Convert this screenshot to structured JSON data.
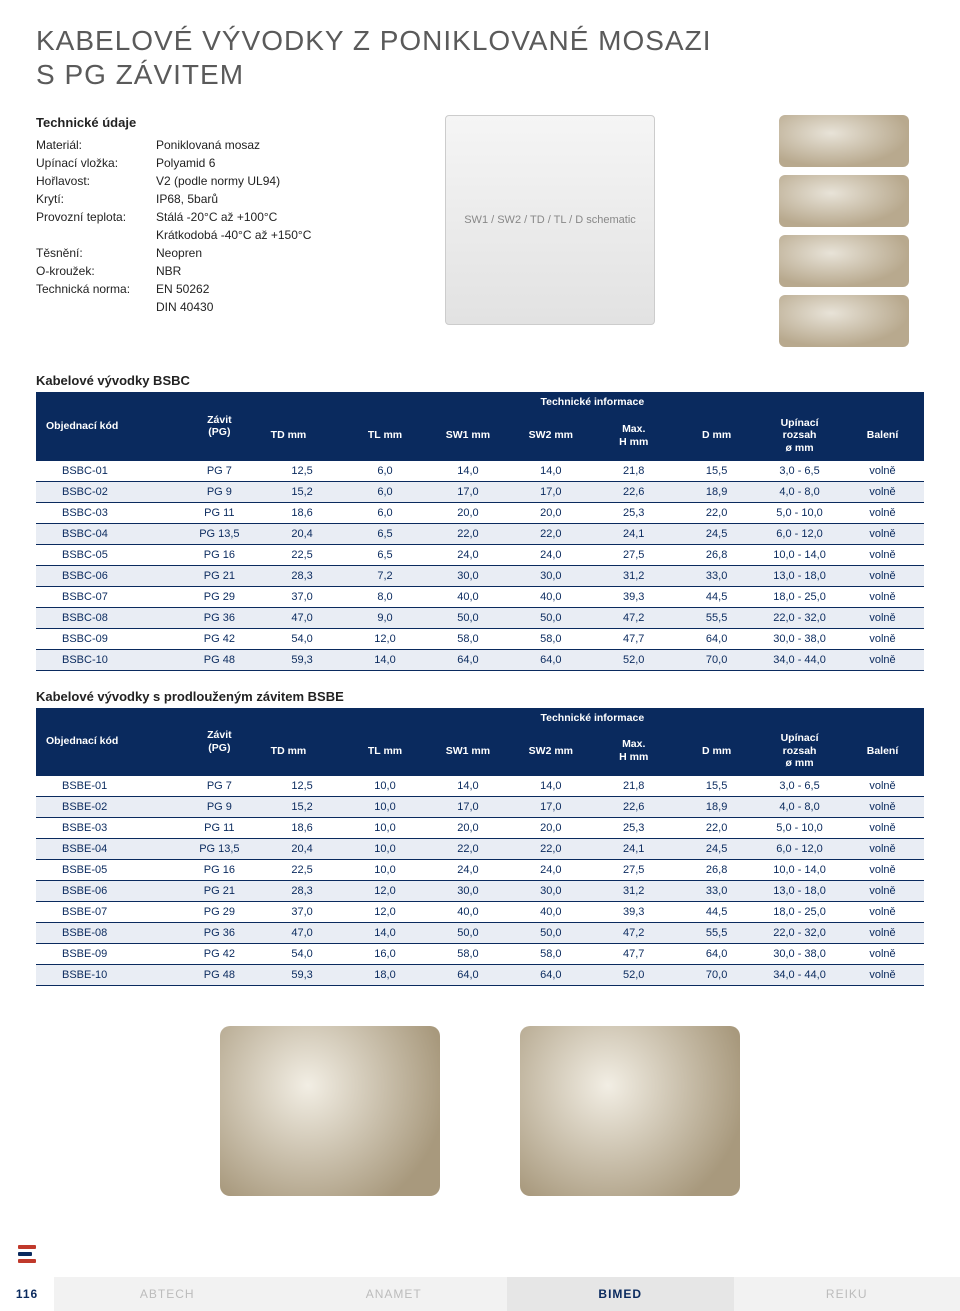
{
  "title_line1": "KABELOVÉ VÝVODKY Z PONIKLOVANÉ MOSAZI",
  "title_line2": "S PG ZÁVITEM",
  "specs": {
    "heading": "Technické údaje",
    "rows": [
      {
        "label": "Materiál:",
        "value": "Poniklovaná mosaz"
      },
      {
        "label": "Upínací vložka:",
        "value": "Polyamid 6"
      },
      {
        "label": "Hořlavost:",
        "value": "V2 (podle normy UL94)"
      },
      {
        "label": "Krytí:",
        "value": "IP68, 5barů"
      },
      {
        "label": "Provozní teplota:",
        "value": "Stálá -20°C až +100°C"
      },
      {
        "label": "",
        "value": "Krátkodobá -40°C až +150°C"
      },
      {
        "label": "Těsnění:",
        "value": "Neopren"
      },
      {
        "label": "O-kroužek:",
        "value": "NBR"
      },
      {
        "label": "Technická norma:",
        "value": "EN 50262"
      },
      {
        "label": "",
        "value": "DIN 40430"
      }
    ]
  },
  "diagram_caption": "SW1 / SW2 / TD / TL / D schematic",
  "table_meta": {
    "supheader": "Technické informace",
    "columns": [
      "Objednací kód",
      "Závit\n(PG)",
      "TD mm",
      "TL mm",
      "SW1 mm",
      "SW2 mm",
      "Max.\nH mm",
      "D mm",
      "Upínací\nrozsah\nø mm",
      "Balení"
    ]
  },
  "table1": {
    "title": "Kabelové vývodky BSBC",
    "rows": [
      [
        "BSBC-01",
        "PG 7",
        "12,5",
        "6,0",
        "14,0",
        "14,0",
        "21,8",
        "15,5",
        "3,0 - 6,5",
        "volně"
      ],
      [
        "BSBC-02",
        "PG 9",
        "15,2",
        "6,0",
        "17,0",
        "17,0",
        "22,6",
        "18,9",
        "4,0 - 8,0",
        "volně"
      ],
      [
        "BSBC-03",
        "PG 11",
        "18,6",
        "6,0",
        "20,0",
        "20,0",
        "25,3",
        "22,0",
        "5,0 - 10,0",
        "volně"
      ],
      [
        "BSBC-04",
        "PG 13,5",
        "20,4",
        "6,5",
        "22,0",
        "22,0",
        "24,1",
        "24,5",
        "6,0 - 12,0",
        "volně"
      ],
      [
        "BSBC-05",
        "PG 16",
        "22,5",
        "6,5",
        "24,0",
        "24,0",
        "27,5",
        "26,8",
        "10,0 - 14,0",
        "volně"
      ],
      [
        "BSBC-06",
        "PG 21",
        "28,3",
        "7,2",
        "30,0",
        "30,0",
        "31,2",
        "33,0",
        "13,0 - 18,0",
        "volně"
      ],
      [
        "BSBC-07",
        "PG 29",
        "37,0",
        "8,0",
        "40,0",
        "40,0",
        "39,3",
        "44,5",
        "18,0 - 25,0",
        "volně"
      ],
      [
        "BSBC-08",
        "PG 36",
        "47,0",
        "9,0",
        "50,0",
        "50,0",
        "47,2",
        "55,5",
        "22,0 - 32,0",
        "volně"
      ],
      [
        "BSBC-09",
        "PG 42",
        "54,0",
        "12,0",
        "58,0",
        "58,0",
        "47,7",
        "64,0",
        "30,0 - 38,0",
        "volně"
      ],
      [
        "BSBC-10",
        "PG 48",
        "59,3",
        "14,0",
        "64,0",
        "64,0",
        "52,0",
        "70,0",
        "34,0 - 44,0",
        "volně"
      ]
    ]
  },
  "table2": {
    "title": "Kabelové vývodky s prodlouženým závitem BSBE",
    "rows": [
      [
        "BSBE-01",
        "PG 7",
        "12,5",
        "10,0",
        "14,0",
        "14,0",
        "21,8",
        "15,5",
        "3,0 - 6,5",
        "volně"
      ],
      [
        "BSBE-02",
        "PG 9",
        "15,2",
        "10,0",
        "17,0",
        "17,0",
        "22,6",
        "18,9",
        "4,0 - 8,0",
        "volně"
      ],
      [
        "BSBE-03",
        "PG 11",
        "18,6",
        "10,0",
        "20,0",
        "20,0",
        "25,3",
        "22,0",
        "5,0 - 10,0",
        "volně"
      ],
      [
        "BSBE-04",
        "PG 13,5",
        "20,4",
        "10,0",
        "22,0",
        "22,0",
        "24,1",
        "24,5",
        "6,0 - 12,0",
        "volně"
      ],
      [
        "BSBE-05",
        "PG 16",
        "22,5",
        "10,0",
        "24,0",
        "24,0",
        "27,5",
        "26,8",
        "10,0 - 14,0",
        "volně"
      ],
      [
        "BSBE-06",
        "PG 21",
        "28,3",
        "12,0",
        "30,0",
        "30,0",
        "31,2",
        "33,0",
        "13,0 - 18,0",
        "volně"
      ],
      [
        "BSBE-07",
        "PG 29",
        "37,0",
        "12,0",
        "40,0",
        "40,0",
        "39,3",
        "44,5",
        "18,0 - 25,0",
        "volně"
      ],
      [
        "BSBE-08",
        "PG 36",
        "47,0",
        "14,0",
        "50,0",
        "50,0",
        "47,2",
        "55,5",
        "22,0 - 32,0",
        "volně"
      ],
      [
        "BSBE-09",
        "PG 42",
        "54,0",
        "16,0",
        "58,0",
        "58,0",
        "47,7",
        "64,0",
        "30,0 - 38,0",
        "volně"
      ],
      [
        "BSBE-10",
        "PG 48",
        "59,3",
        "18,0",
        "64,0",
        "64,0",
        "52,0",
        "70,0",
        "34,0 - 44,0",
        "volně"
      ]
    ]
  },
  "footer": {
    "page_number": "116",
    "tabs": [
      "ABTECH",
      "ANAMET",
      "BIMED",
      "REIKU"
    ],
    "active_index": 2
  },
  "colors": {
    "brand_navy": "#0a2a5e",
    "row_alt": "#e9edf4",
    "title_gray": "#5a5a5a"
  }
}
